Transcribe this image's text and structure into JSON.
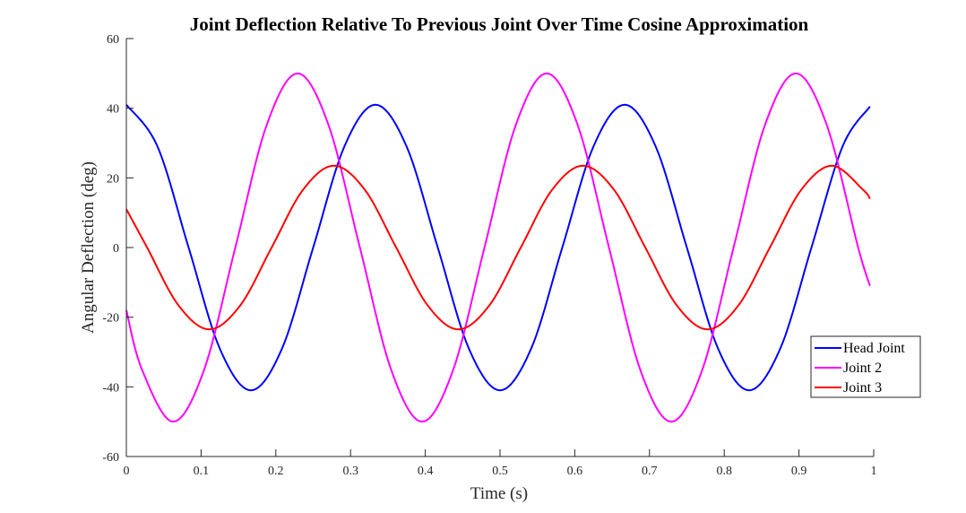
{
  "chart_data": {
    "type": "line",
    "title": "Joint Deflection Relative To Previous Joint Over Time Cosine Approximation",
    "xlabel": "Time (s)",
    "ylabel": "Angular Deflection (deg)",
    "xlim": [
      0,
      1
    ],
    "ylim": [
      -60,
      60
    ],
    "xticks": [
      0,
      0.1,
      0.2,
      0.3,
      0.4,
      0.5,
      0.6,
      0.7,
      0.8,
      0.9,
      1
    ],
    "xtick_labels": [
      "0",
      "0.1",
      "0.2",
      "0.3",
      "0.4",
      "0.5",
      "0.6",
      "0.7",
      "0.8",
      "0.9",
      "1"
    ],
    "yticks": [
      -60,
      -40,
      -20,
      0,
      20,
      40,
      60
    ],
    "ytick_labels": [
      "-60",
      "-40",
      "-20",
      "0",
      "20",
      "40",
      "60"
    ],
    "grid": false,
    "legend_position": "bottom-right",
    "series": [
      {
        "name": "Head Joint",
        "color": "#0000ff",
        "x": [
          0,
          0.0417,
          0.0833,
          0.125,
          0.1667,
          0.2083,
          0.25,
          0.2917,
          0.3333,
          0.375,
          0.4167,
          0.4583,
          0.5,
          0.5417,
          0.5833,
          0.625,
          0.6667,
          0.7083,
          0.75,
          0.7917,
          0.8333,
          0.875,
          0.9167,
          0.9583,
          0.995
        ],
        "values": [
          41,
          29,
          0,
          -29,
          -41,
          -29,
          0,
          29,
          41,
          29,
          0,
          -29,
          -41,
          -29,
          0,
          29,
          41,
          29,
          0,
          -29,
          -41,
          -29,
          0,
          29,
          40.5
        ]
      },
      {
        "name": "Joint 2",
        "color": "#ff00ff",
        "x": [
          0,
          0.0208,
          0.0625,
          0.1042,
          0.1458,
          0.1875,
          0.2292,
          0.2708,
          0.3125,
          0.3542,
          0.3958,
          0.4375,
          0.4792,
          0.5208,
          0.5625,
          0.6042,
          0.6458,
          0.6875,
          0.7292,
          0.7708,
          0.8125,
          0.8542,
          0.8958,
          0.9375,
          0.9792,
          0.995
        ],
        "values": [
          -18,
          -35,
          -50,
          -35,
          0,
          35,
          50,
          35,
          0,
          -35,
          -50,
          -35,
          0,
          35,
          50,
          35,
          0,
          -35,
          -50,
          -35,
          0,
          35,
          50,
          35,
          0,
          -11
        ]
      },
      {
        "name": "Joint 3",
        "color": "#ff0000",
        "x": [
          0,
          0.0278,
          0.0694,
          0.1111,
          0.1528,
          0.1944,
          0.2361,
          0.2778,
          0.3194,
          0.3611,
          0.4028,
          0.4444,
          0.4861,
          0.5278,
          0.5694,
          0.6111,
          0.6528,
          0.6944,
          0.7361,
          0.7778,
          0.8194,
          0.8611,
          0.9028,
          0.9444,
          0.9861,
          0.995
        ],
        "values": [
          11,
          0,
          -16.5,
          -23.5,
          -16.5,
          0,
          16.5,
          23.5,
          16.5,
          0,
          -16.5,
          -23.5,
          -16.5,
          0,
          16.5,
          23.5,
          16.5,
          0,
          -16.5,
          -23.5,
          -16.5,
          0,
          16.5,
          23.5,
          16.5,
          14
        ]
      }
    ]
  }
}
